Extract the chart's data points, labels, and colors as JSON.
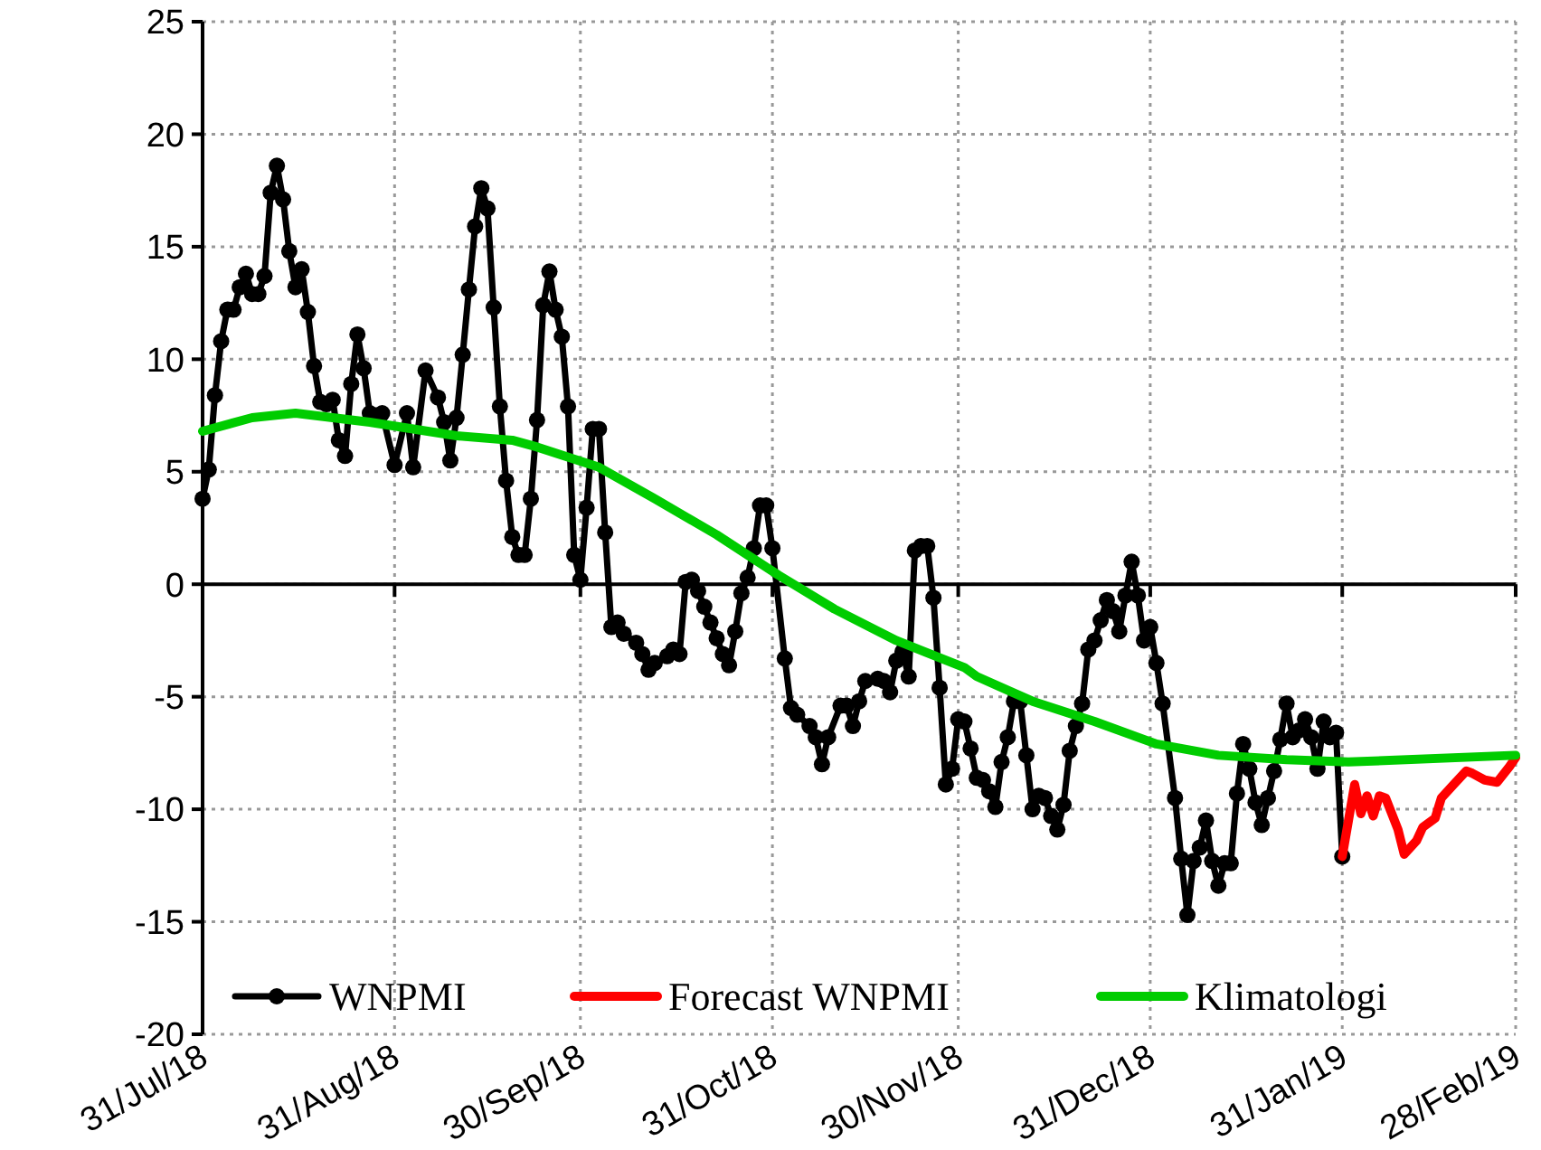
{
  "chart_data": {
    "type": "line",
    "xlim": [
      "2018-07-31",
      "2019-02-28"
    ],
    "xticks": [
      {
        "value": "2018-07-31",
        "label": "31/Jul/18"
      },
      {
        "value": "2018-08-31",
        "label": "31/Aug/18"
      },
      {
        "value": "2018-09-30",
        "label": "30/Sep/18"
      },
      {
        "value": "2018-10-31",
        "label": "31/Oct/18"
      },
      {
        "value": "2018-11-30",
        "label": "30/Nov/18"
      },
      {
        "value": "2018-12-31",
        "label": "31/Dec/18"
      },
      {
        "value": "2019-01-31",
        "label": "31/Jan/19"
      },
      {
        "value": "2019-02-28",
        "label": "28/Feb/19"
      }
    ],
    "ylim": [
      -20,
      25
    ],
    "yticks": [
      -20,
      -15,
      -10,
      -5,
      0,
      5,
      10,
      15,
      20,
      25
    ],
    "grid": true,
    "legend": "bottom",
    "series": [
      {
        "name": "WNPMI",
        "color": "#000000",
        "marker": "circle",
        "x": [
          "2018-07-31",
          "2018-08-01",
          "2018-08-02",
          "2018-08-03",
          "2018-08-04",
          "2018-08-05",
          "2018-08-06",
          "2018-08-07",
          "2018-08-08",
          "2018-08-09",
          "2018-08-10",
          "2018-08-11",
          "2018-08-12",
          "2018-08-13",
          "2018-08-14",
          "2018-08-15",
          "2018-08-16",
          "2018-08-17",
          "2018-08-18",
          "2018-08-19",
          "2018-08-20",
          "2018-08-21",
          "2018-08-22",
          "2018-08-23",
          "2018-08-24",
          "2018-08-25",
          "2018-08-26",
          "2018-08-27",
          "2018-08-28",
          "2018-08-29",
          "2018-08-31",
          "2018-09-02",
          "2018-09-03",
          "2018-09-05",
          "2018-09-07",
          "2018-09-08",
          "2018-09-09",
          "2018-09-10",
          "2018-09-11",
          "2018-09-12",
          "2018-09-13",
          "2018-09-14",
          "2018-09-15",
          "2018-09-16",
          "2018-09-17",
          "2018-09-18",
          "2018-09-19",
          "2018-09-20",
          "2018-09-21",
          "2018-09-22",
          "2018-09-23",
          "2018-09-24",
          "2018-09-25",
          "2018-09-26",
          "2018-09-27",
          "2018-09-28",
          "2018-09-29",
          "2018-09-30",
          "2018-10-01",
          "2018-10-02",
          "2018-10-03",
          "2018-10-04",
          "2018-10-05",
          "2018-10-06",
          "2018-10-07",
          "2018-10-09",
          "2018-10-10",
          "2018-10-11",
          "2018-10-12",
          "2018-10-14",
          "2018-10-15",
          "2018-10-16",
          "2018-10-17",
          "2018-10-18",
          "2018-10-19",
          "2018-10-20",
          "2018-10-21",
          "2018-10-22",
          "2018-10-23",
          "2018-10-24",
          "2018-10-25",
          "2018-10-26",
          "2018-10-27",
          "2018-10-28",
          "2018-10-29",
          "2018-10-30",
          "2018-10-31",
          "2018-11-02",
          "2018-11-03",
          "2018-11-04",
          "2018-11-06",
          "2018-11-07",
          "2018-11-08",
          "2018-11-09",
          "2018-11-11",
          "2018-11-12",
          "2018-11-13",
          "2018-11-14",
          "2018-11-15",
          "2018-11-17",
          "2018-11-18",
          "2018-11-19",
          "2018-11-20",
          "2018-11-21",
          "2018-11-22",
          "2018-11-23",
          "2018-11-24",
          "2018-11-25",
          "2018-11-26",
          "2018-11-27",
          "2018-11-28",
          "2018-11-29",
          "2018-11-30",
          "2018-12-01",
          "2018-12-02",
          "2018-12-03",
          "2018-12-04",
          "2018-12-05",
          "2018-12-06",
          "2018-12-07",
          "2018-12-08",
          "2018-12-09",
          "2018-12-10",
          "2018-12-11",
          "2018-12-12",
          "2018-12-13",
          "2018-12-14",
          "2018-12-15",
          "2018-12-16",
          "2018-12-17",
          "2018-12-18",
          "2018-12-19",
          "2018-12-20",
          "2018-12-21",
          "2018-12-22",
          "2018-12-23",
          "2018-12-24",
          "2018-12-25",
          "2018-12-26",
          "2018-12-27",
          "2018-12-28",
          "2018-12-29",
          "2018-12-30",
          "2018-12-31",
          "2019-01-01",
          "2019-01-02",
          "2019-01-04",
          "2019-01-05",
          "2019-01-06",
          "2019-01-07",
          "2019-01-08",
          "2019-01-09",
          "2019-01-10",
          "2019-01-11",
          "2019-01-12",
          "2019-01-13",
          "2019-01-14",
          "2019-01-15",
          "2019-01-16",
          "2019-01-17",
          "2019-01-18",
          "2019-01-19",
          "2019-01-20",
          "2019-01-21",
          "2019-01-22",
          "2019-01-23",
          "2019-01-24",
          "2019-01-25",
          "2019-01-26",
          "2019-01-27",
          "2019-01-28",
          "2019-01-29",
          "2019-01-30",
          "2019-01-31"
        ],
        "values": [
          3.8,
          5.1,
          8.4,
          10.8,
          12.2,
          12.2,
          13.2,
          13.8,
          12.9,
          12.9,
          13.7,
          17.4,
          18.6,
          17.1,
          14.8,
          13.2,
          14.0,
          12.1,
          9.7,
          8.1,
          8.0,
          8.2,
          6.4,
          5.7,
          8.9,
          11.1,
          9.6,
          7.6,
          7.5,
          7.6,
          5.3,
          7.6,
          5.2,
          9.5,
          8.3,
          7.2,
          5.5,
          7.4,
          10.2,
          13.1,
          15.9,
          17.6,
          16.7,
          12.3,
          7.9,
          4.6,
          2.1,
          1.3,
          1.3,
          3.8,
          7.3,
          12.4,
          13.9,
          12.2,
          11.0,
          7.9,
          1.3,
          0.2,
          3.4,
          6.9,
          6.9,
          2.3,
          -1.9,
          -1.7,
          -2.2,
          -2.6,
          -3.1,
          -3.8,
          -3.5,
          -3.2,
          -2.9,
          -3.1,
          0.1,
          0.2,
          -0.3,
          -1.0,
          -1.7,
          -2.4,
          -3.1,
          -3.6,
          -2.1,
          -0.4,
          0.3,
          1.6,
          3.5,
          3.5,
          1.6,
          -3.3,
          -5.5,
          -5.8,
          -6.3,
          -6.8,
          -8.0,
          -6.8,
          -5.4,
          -5.4,
          -6.3,
          -5.2,
          -4.3,
          -4.2,
          -4.3,
          -4.8,
          -3.4,
          -3.0,
          -4.1,
          1.5,
          1.7,
          1.7,
          -0.6,
          -4.6,
          -8.9,
          -8.2,
          -6.0,
          -6.1,
          -7.3,
          -8.6,
          -8.7,
          -9.2,
          -9.9,
          -7.9,
          -6.8,
          -5.2,
          -5.2,
          -7.6,
          -10.0,
          -9.4,
          -9.5,
          -10.3,
          -10.9,
          -9.8,
          -7.4,
          -6.3,
          -5.3,
          -2.9,
          -2.5,
          -1.6,
          -0.7,
          -1.2,
          -2.1,
          -0.5,
          1.0,
          -0.5,
          -2.5,
          -1.9,
          -3.5,
          -5.3,
          -9.5,
          -12.2,
          -14.7,
          -12.3,
          -11.7,
          -10.5,
          -12.3,
          -13.4,
          -12.4,
          -12.4,
          -9.3,
          -7.1,
          -8.2,
          -9.7,
          -10.7,
          -9.5,
          -8.3,
          -6.9,
          -5.3,
          -6.8,
          -6.5,
          -6.0,
          -6.8,
          -8.2,
          -6.1,
          -6.8,
          -6.6,
          -12.1
        ]
      },
      {
        "name": "Forecast WNPMI",
        "color": "#ff0000",
        "marker": "none",
        "x": [
          "2019-01-31",
          "2019-02-01",
          "2019-02-02",
          "2019-02-03",
          "2019-02-04",
          "2019-02-05",
          "2019-02-06",
          "2019-02-07",
          "2019-02-09",
          "2019-02-10",
          "2019-02-12",
          "2019-02-13",
          "2019-02-15",
          "2019-02-16",
          "2019-02-18",
          "2019-02-20",
          "2019-02-21",
          "2019-02-23",
          "2019-02-25",
          "2019-02-27",
          "2019-02-28"
        ],
        "values": [
          -12.1,
          -10.5,
          -8.9,
          -10.2,
          -9.4,
          -10.3,
          -9.4,
          -9.5,
          -10.9,
          -12.0,
          -11.4,
          -10.8,
          -10.4,
          -9.5,
          -8.9,
          -8.3,
          -8.4,
          -8.7,
          -8.8,
          -8.1,
          -7.7
        ]
      },
      {
        "name": "Klimatologi",
        "color": "#00cc00",
        "marker": "none",
        "x": [
          "2018-07-31",
          "2018-08-08",
          "2018-08-15",
          "2018-08-27",
          "2018-09-10",
          "2018-09-19",
          "2018-09-23",
          "2018-10-03",
          "2018-10-12",
          "2018-10-22",
          "2018-11-01",
          "2018-11-10",
          "2018-11-20",
          "2018-12-01",
          "2018-12-03",
          "2018-12-12",
          "2018-12-22",
          "2019-01-01",
          "2019-01-11",
          "2019-01-22",
          "2019-02-01",
          "2019-02-28"
        ],
        "values": [
          6.8,
          7.4,
          7.6,
          7.2,
          6.6,
          6.4,
          6.1,
          5.2,
          3.8,
          2.2,
          0.4,
          -1.1,
          -2.5,
          -3.7,
          -4.1,
          -5.2,
          -6.1,
          -7.1,
          -7.6,
          -7.8,
          -7.9,
          -7.6
        ]
      }
    ]
  }
}
